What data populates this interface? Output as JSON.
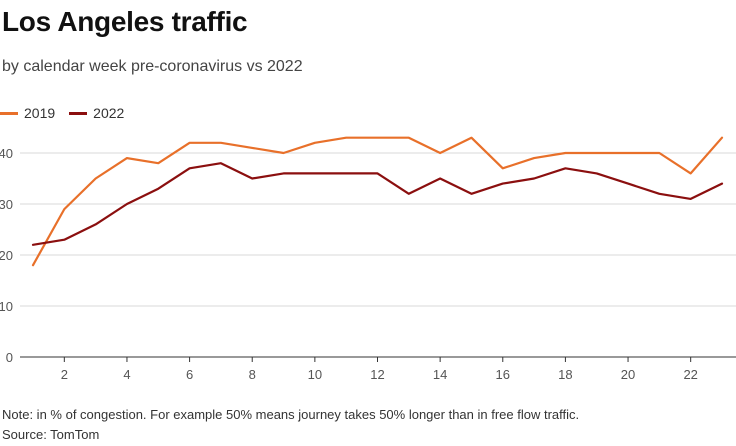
{
  "chart_data": {
    "type": "line",
    "title": "Los Angeles traffic",
    "subtitle": "by calendar week pre-coronavirus vs 2022",
    "xlabel": "",
    "ylabel": "",
    "x": [
      1,
      2,
      3,
      4,
      5,
      6,
      7,
      8,
      9,
      10,
      11,
      12,
      13,
      14,
      15,
      16,
      17,
      18,
      19,
      20,
      21,
      22,
      23
    ],
    "xticks": [
      2,
      4,
      6,
      8,
      10,
      12,
      14,
      16,
      18,
      20,
      22
    ],
    "xlim": [
      1,
      23
    ],
    "yticks": [
      0,
      10,
      20,
      30,
      40
    ],
    "ylim": [
      0,
      40
    ],
    "grid": true,
    "legend_position": "top-left",
    "series": [
      {
        "name": "2019",
        "color": "#e8702a",
        "values": [
          18,
          29,
          35,
          39,
          38,
          42,
          42,
          41,
          40,
          42,
          43,
          43,
          43,
          40,
          43,
          37,
          39,
          40,
          40,
          40,
          40,
          36,
          43
        ]
      },
      {
        "name": "2022",
        "color": "#8b0f0f",
        "values": [
          22,
          23,
          26,
          30,
          33,
          37,
          38,
          35,
          36,
          36,
          36,
          36,
          32,
          35,
          32,
          34,
          35,
          37,
          36,
          34,
          32,
          31,
          34
        ]
      }
    ],
    "note": "Note: in % of congestion. For example 50% means journey takes 50% longer than in free flow traffic.",
    "source": "Source: TomTom"
  }
}
